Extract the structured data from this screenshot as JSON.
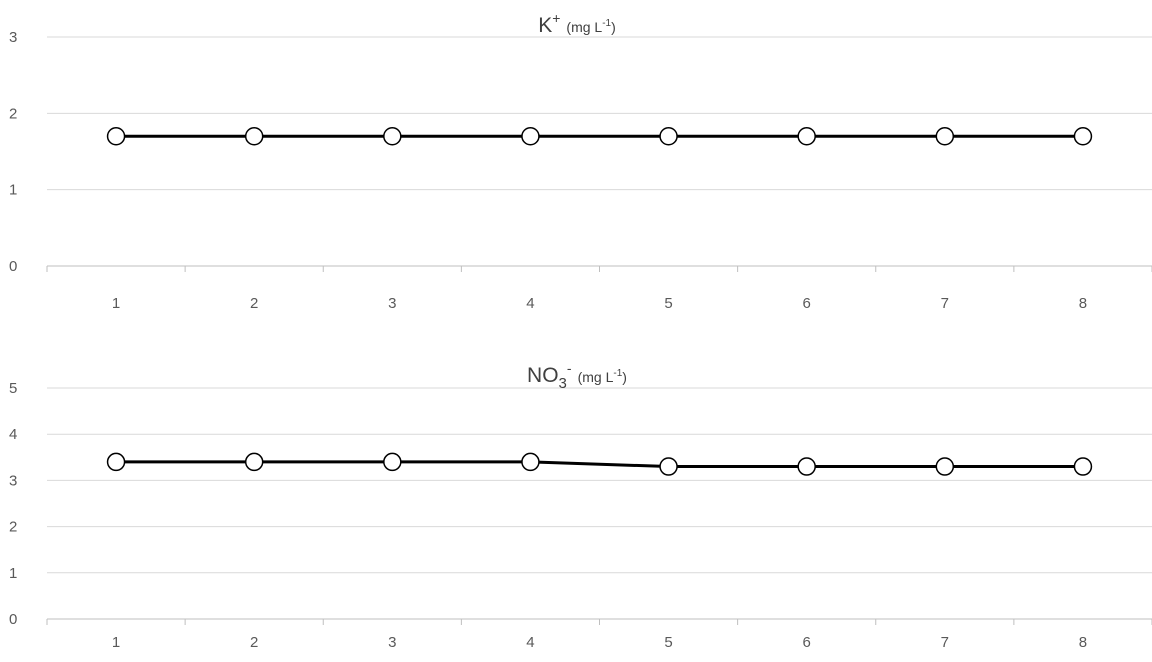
{
  "chart_data": [
    {
      "type": "line",
      "title": {
        "main": "K",
        "sup": "+",
        "unit": "(mg L",
        "unit_sup": "-1",
        "unit_end": ")"
      },
      "categories": [
        "1",
        "2",
        "3",
        "4",
        "5",
        "6",
        "7",
        "8"
      ],
      "series": [
        {
          "values": [
            1.7,
            1.7,
            1.7,
            1.7,
            1.7,
            1.7,
            1.7,
            1.7
          ],
          "color": "#000000",
          "marker": "open-circle"
        }
      ],
      "ylim": [
        0,
        3
      ],
      "yticks": [
        "0",
        "1",
        "2",
        "3"
      ],
      "grid": true
    },
    {
      "type": "line",
      "title": {
        "main": "NO",
        "sub": "3",
        "sup": "-",
        "unit": "(mg L",
        "unit_sup": "-1",
        "unit_end": ")"
      },
      "categories": [
        "1",
        "2",
        "3",
        "4",
        "5",
        "6",
        "7",
        "8"
      ],
      "series": [
        {
          "values": [
            3.4,
            3.4,
            3.4,
            3.4,
            3.3,
            3.3,
            3.3,
            3.3
          ],
          "color": "#000000",
          "marker": "open-circle"
        }
      ],
      "ylim": [
        0,
        5
      ],
      "yticks": [
        "0",
        "1",
        "2",
        "3",
        "4",
        "5"
      ],
      "grid": true
    }
  ]
}
